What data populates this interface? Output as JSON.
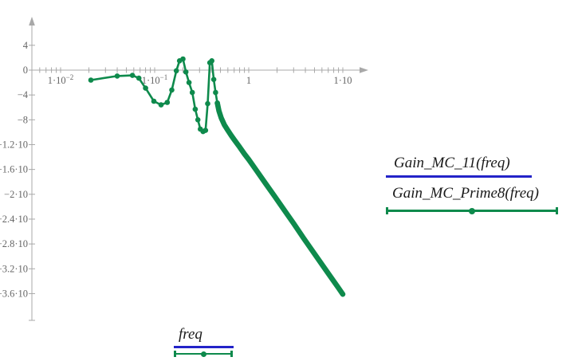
{
  "colors": {
    "trace_green": "#0E8A4C",
    "trace_blue": "#2323C8",
    "axis_line": "#A8A8A8",
    "tick_label": "#666666",
    "label_text": "#1A1A1A"
  },
  "legend": {
    "entries": [
      {
        "label": "Gain_MC_11(freq)",
        "series_color": "#2323C8",
        "marker": "none"
      },
      {
        "label": "Gain_MC_Prime8(freq)",
        "series_color": "#0E8A4C",
        "marker": "circle"
      }
    ]
  },
  "x_axis_label": {
    "label": "freq"
  },
  "chart_data": {
    "type": "line",
    "title": "",
    "xlabel": "freq",
    "ylabel": "",
    "x_scale": "log",
    "x_range": [
      0.005,
      18
    ],
    "y_range": [
      -40,
      8.5
    ],
    "y_tick_interval": 4,
    "grid": false,
    "legend_position": "right",
    "x_ticks": [
      {
        "value": 0.01,
        "base": "1·10",
        "exp": "−2"
      },
      {
        "value": 0.1,
        "base": "1·10",
        "exp": "−1"
      },
      {
        "value": 1,
        "base": "1",
        "exp": ""
      },
      {
        "value": 10,
        "base": "1·10",
        "exp": ""
      }
    ],
    "y_ticks": [
      {
        "value": 4,
        "label": "4"
      },
      {
        "value": 0,
        "label": "0"
      },
      {
        "value": -4,
        "label": "−4"
      },
      {
        "value": -8,
        "label": "−8"
      },
      {
        "value": -12,
        "label": "−1.2·10"
      },
      {
        "value": -16,
        "label": "−1.6·10"
      },
      {
        "value": -20,
        "label": "−2·10"
      },
      {
        "value": -24,
        "label": "−2.4·10"
      },
      {
        "value": -28,
        "label": "−2.8·10"
      },
      {
        "value": -32,
        "label": "−3.2·10"
      },
      {
        "value": -36,
        "label": "−3.6·10"
      }
    ],
    "series": [
      {
        "name": "Gain_MC_11(freq)",
        "color": "#2323C8",
        "marker": "none",
        "points": []
      },
      {
        "name": "Gain_MC_Prime8(freq)",
        "color": "#0E8A4C",
        "marker": "circle",
        "dense_from_index": 26,
        "points": [
          [
            0.021,
            -1.6
          ],
          [
            0.04,
            -0.95
          ],
          [
            0.058,
            -0.85
          ],
          [
            0.068,
            -1.3
          ],
          [
            0.08,
            -2.9
          ],
          [
            0.098,
            -5.0
          ],
          [
            0.117,
            -5.6
          ],
          [
            0.136,
            -5.2
          ],
          [
            0.152,
            -3.2
          ],
          [
            0.17,
            -0.1
          ],
          [
            0.184,
            1.5
          ],
          [
            0.2,
            1.8
          ],
          [
            0.215,
            -0.3
          ],
          [
            0.232,
            -2.0
          ],
          [
            0.251,
            -3.6
          ],
          [
            0.27,
            -6.3
          ],
          [
            0.288,
            -8.0
          ],
          [
            0.306,
            -9.5
          ],
          [
            0.327,
            -9.9
          ],
          [
            0.347,
            -9.7
          ],
          [
            0.366,
            -5.4
          ],
          [
            0.386,
            1.2
          ],
          [
            0.405,
            1.5
          ],
          [
            0.425,
            -1.5
          ],
          [
            0.444,
            -3.6
          ],
          [
            0.464,
            -5.3
          ],
          [
            0.483,
            -6.6
          ],
          [
            0.51,
            -7.7
          ],
          [
            0.55,
            -8.8
          ],
          [
            0.6,
            -9.7
          ],
          [
            0.65,
            -10.5
          ],
          [
            0.7,
            -11.2
          ],
          [
            0.8,
            -12.4
          ],
          [
            0.9,
            -13.5
          ],
          [
            1.0,
            -14.4
          ],
          [
            1.2,
            -16.1
          ],
          [
            1.5,
            -18.2
          ],
          [
            1.9,
            -20.4
          ],
          [
            2.4,
            -22.6
          ],
          [
            3.0,
            -24.7
          ],
          [
            3.8,
            -27.0
          ],
          [
            4.8,
            -29.2
          ],
          [
            6.0,
            -31.3
          ],
          [
            7.5,
            -33.4
          ],
          [
            9.0,
            -35.1
          ],
          [
            10.0,
            -36.1
          ]
        ]
      }
    ]
  }
}
